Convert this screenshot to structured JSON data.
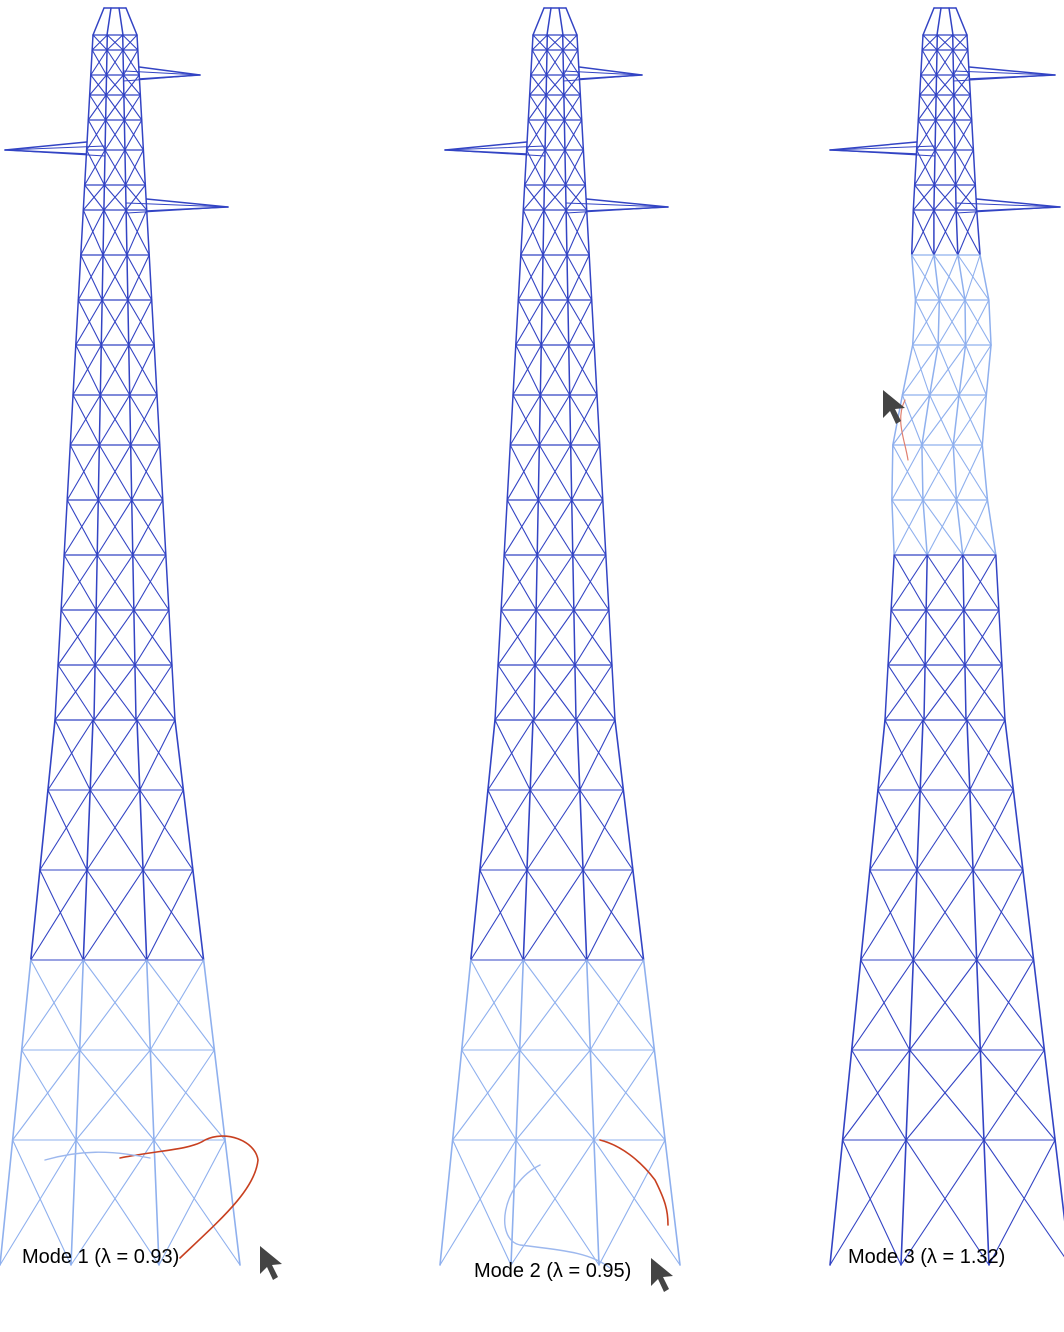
{
  "captions": [
    "Mode 1 (λ = 0.93)",
    "Mode 2 (λ = 0.95)",
    "Mode 3 (λ = 1.32)"
  ]
}
